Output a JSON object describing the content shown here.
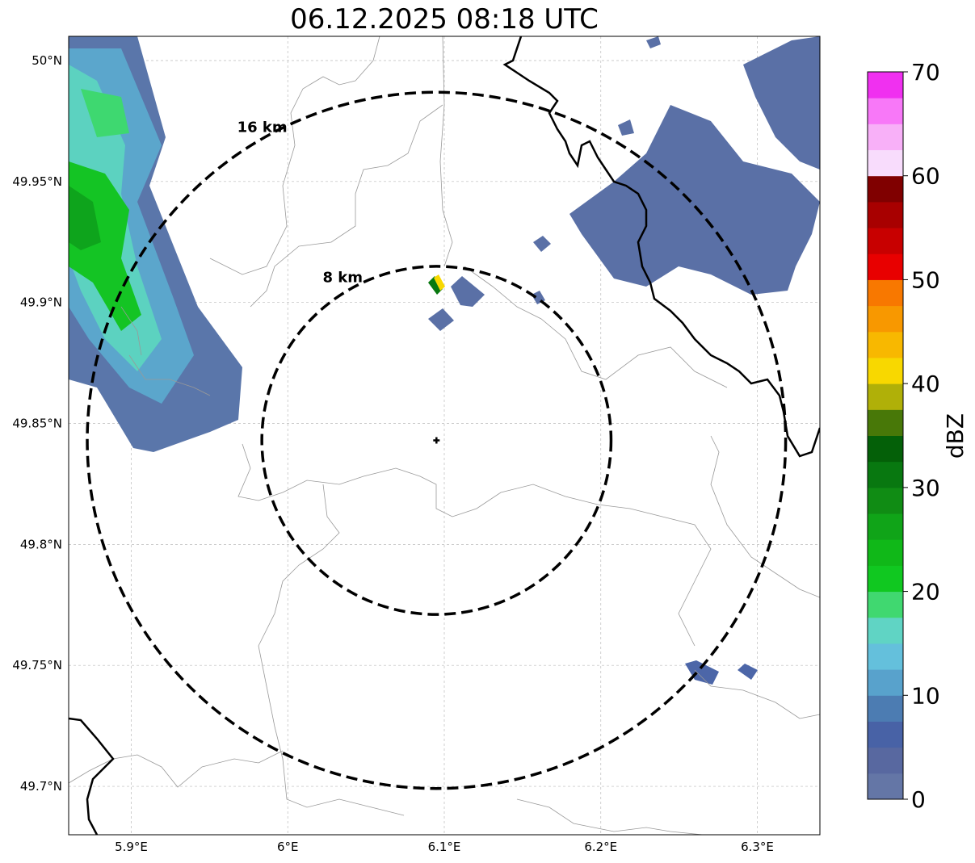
{
  "title": "06.12.2025 08:18 UTC",
  "map": {
    "extent": {
      "lon": [
        5.86,
        6.34
      ],
      "lat": [
        49.68,
        50.01
      ]
    },
    "lon_ticks": [
      {
        "value": 5.9,
        "label": "5.9°E"
      },
      {
        "value": 6.0,
        "label": "6°E"
      },
      {
        "value": 6.1,
        "label": "6.1°E"
      },
      {
        "value": 6.2,
        "label": "6.2°E"
      },
      {
        "value": 6.3,
        "label": "6.3°E"
      }
    ],
    "lat_ticks": [
      {
        "value": 50.0,
        "label": "50°N"
      },
      {
        "value": 49.95,
        "label": "49.95°N"
      },
      {
        "value": 49.9,
        "label": "49.9°N"
      },
      {
        "value": 49.85,
        "label": "49.85°N"
      },
      {
        "value": 49.8,
        "label": "49.8°N"
      },
      {
        "value": 49.75,
        "label": "49.75°N"
      },
      {
        "value": 49.7,
        "label": "49.7°N"
      }
    ],
    "center": {
      "lon": 6.095,
      "lat": 49.843
    },
    "rings": [
      {
        "radius_km": 8,
        "label": "8 km"
      },
      {
        "radius_km": 16,
        "label": "16 km"
      }
    ]
  },
  "colorbar": {
    "label": "dBZ",
    "min": 0,
    "max": 70,
    "ticks": [
      "0",
      "10",
      "20",
      "30",
      "40",
      "50",
      "60",
      "70"
    ],
    "colors": [
      "#6476a6",
      "#5868a0",
      "#4862a6",
      "#4c7cb2",
      "#58a2cc",
      "#64c0dc",
      "#60d4c4",
      "#40d870",
      "#10c820",
      "#10b818",
      "#10a418",
      "#108c14",
      "#087810",
      "#046008",
      "#487808",
      "#b0b008",
      "#f8d800",
      "#f8b800",
      "#f89800",
      "#f87800",
      "#e80000",
      "#c80000",
      "#a80000",
      "#800000",
      "#f8dcfc",
      "#f8b0f8",
      "#f878f8",
      "#f030f0"
    ]
  }
}
